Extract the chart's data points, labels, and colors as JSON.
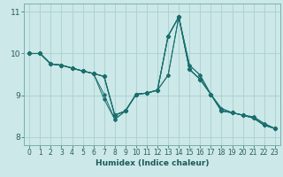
{
  "title": "",
  "xlabel": "Humidex (Indice chaleur)",
  "ylabel": "",
  "background_color": "#cce8e8",
  "grid_color": "#aad0d0",
  "line_color": "#1a6e6e",
  "x_values": [
    0,
    1,
    2,
    3,
    4,
    5,
    6,
    7,
    8,
    9,
    10,
    11,
    12,
    13,
    14,
    15,
    16,
    17,
    18,
    19,
    20,
    21,
    22,
    23
  ],
  "series": [
    [
      10.0,
      10.0,
      9.75,
      9.72,
      9.65,
      9.58,
      9.52,
      9.45,
      8.52,
      8.62,
      9.02,
      9.05,
      9.12,
      10.42,
      10.88,
      9.62,
      9.38,
      9.02,
      8.62,
      8.58,
      8.52,
      8.45,
      8.28,
      8.2
    ],
    [
      10.0,
      10.0,
      9.75,
      9.72,
      9.65,
      9.58,
      9.52,
      9.45,
      8.52,
      8.62,
      9.02,
      9.05,
      9.12,
      10.42,
      10.88,
      9.62,
      9.38,
      9.02,
      8.62,
      8.58,
      8.52,
      8.45,
      8.28,
      8.2
    ],
    [
      10.0,
      10.0,
      9.75,
      9.72,
      9.65,
      9.58,
      9.52,
      8.9,
      8.42,
      8.62,
      9.02,
      9.05,
      9.12,
      9.48,
      10.88,
      9.72,
      9.48,
      9.02,
      8.68,
      8.58,
      8.52,
      8.48,
      8.32,
      8.2
    ],
    [
      10.0,
      10.0,
      9.75,
      9.72,
      9.65,
      9.58,
      9.52,
      9.02,
      8.42,
      8.62,
      9.02,
      9.05,
      9.12,
      9.48,
      10.88,
      9.72,
      9.48,
      9.02,
      8.68,
      8.58,
      8.52,
      8.48,
      8.32,
      8.2
    ]
  ],
  "main_series": [
    10.0,
    10.0,
    9.75,
    9.72,
    9.65,
    9.58,
    9.52,
    9.45,
    8.52,
    8.62,
    9.02,
    9.05,
    9.12,
    10.42,
    10.88,
    9.62,
    9.38,
    9.02,
    8.62,
    8.58,
    8.52,
    8.45,
    8.28,
    8.2
  ],
  "ylim": [
    7.8,
    11.2
  ],
  "xlim": [
    -0.5,
    23.5
  ],
  "yticks": [
    8,
    9,
    10,
    11
  ],
  "xticks": [
    0,
    1,
    2,
    3,
    4,
    5,
    6,
    7,
    8,
    9,
    10,
    11,
    12,
    13,
    14,
    15,
    16,
    17,
    18,
    19,
    20,
    21,
    22,
    23
  ]
}
